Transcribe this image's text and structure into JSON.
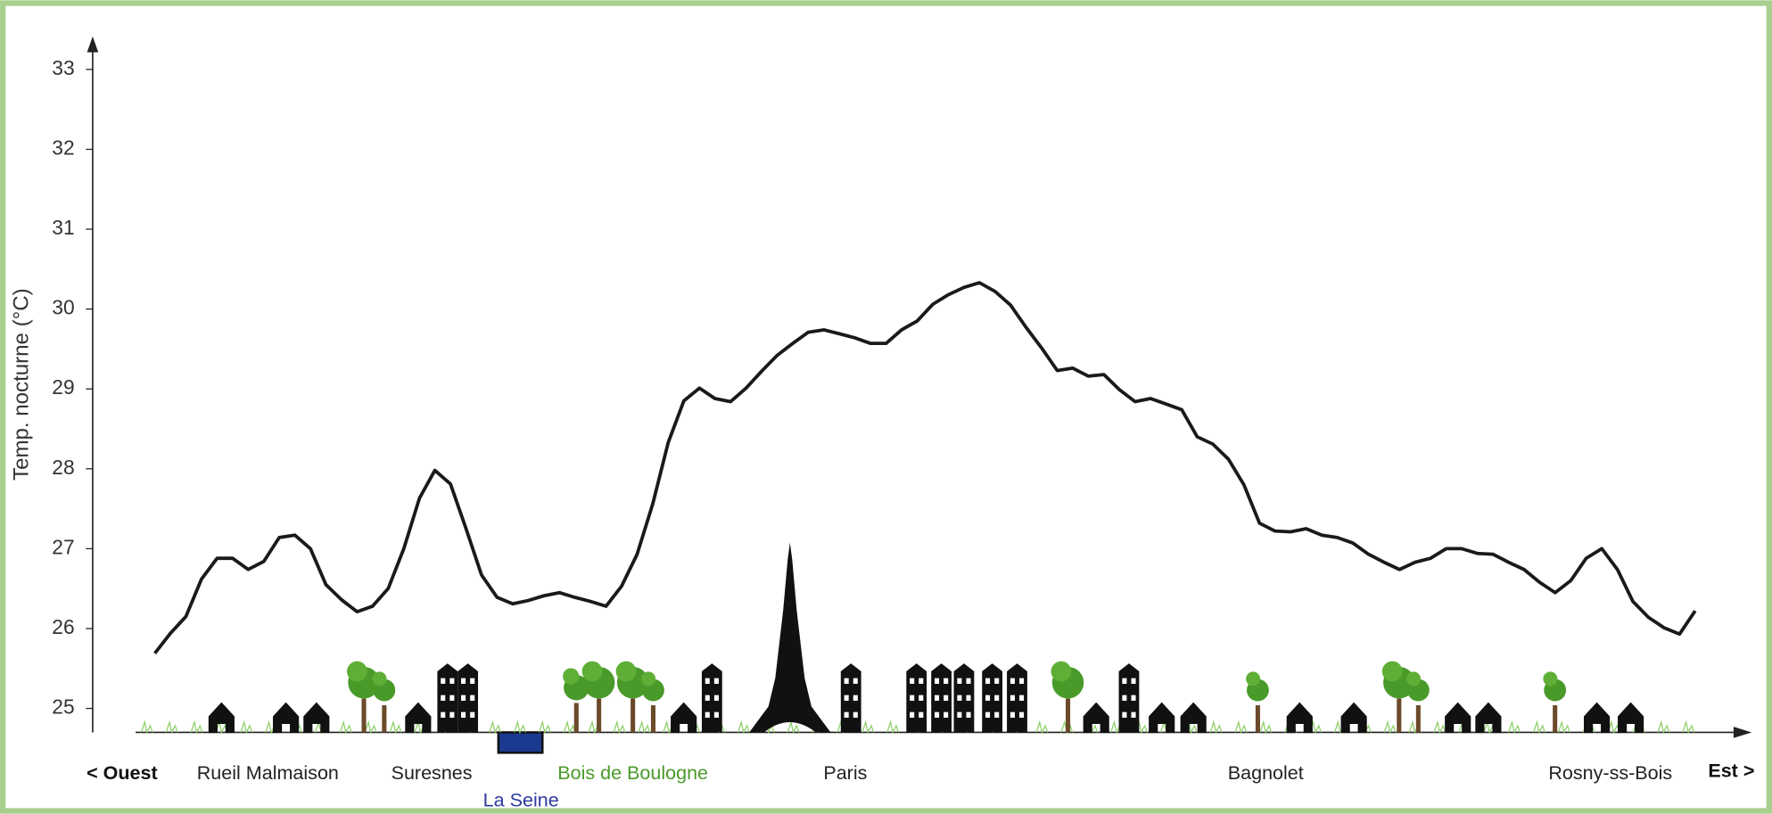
{
  "chart_data": {
    "type": "line",
    "y_label": "Temp. nocturne (°C)",
    "ylim": [
      24.7,
      33.3
    ],
    "yticks": [
      25,
      26,
      27,
      28,
      29,
      30,
      31,
      32,
      33
    ],
    "color": "#1a1a1a",
    "values": [
      25.69,
      25.94,
      26.15,
      26.62,
      26.88,
      26.88,
      26.74,
      26.84,
      27.14,
      27.17,
      27.0,
      26.55,
      26.36,
      26.21,
      26.28,
      26.5,
      27.0,
      27.63,
      27.98,
      27.81,
      27.25,
      26.67,
      26.39,
      26.31,
      26.35,
      26.41,
      26.45,
      26.39,
      26.34,
      26.28,
      26.53,
      26.93,
      27.56,
      28.33,
      28.85,
      29.01,
      28.88,
      28.84,
      29.01,
      29.22,
      29.42,
      29.57,
      29.71,
      29.74,
      29.69,
      29.64,
      29.57,
      29.57,
      29.74,
      29.85,
      30.06,
      30.18,
      30.27,
      30.33,
      30.22,
      30.05,
      29.77,
      29.51,
      29.23,
      29.26,
      29.16,
      29.18,
      28.99,
      28.84,
      28.88,
      28.81,
      28.74,
      28.4,
      28.31,
      28.12,
      27.8,
      27.32,
      27.22,
      27.21,
      27.25,
      27.17,
      27.14,
      27.07,
      26.93,
      26.83,
      26.74,
      26.83,
      26.88,
      27.0,
      27.0,
      26.94,
      26.93,
      26.83,
      26.74,
      26.58,
      26.45,
      26.6,
      26.88,
      27.0,
      26.74,
      26.34,
      26.14,
      26.01,
      25.93,
      26.22
    ],
    "places": [
      {
        "text": "< Ouest",
        "color": "#111111"
      },
      {
        "text": "Rueil Malmaison",
        "color": "#222222"
      },
      {
        "text": "Suresnes",
        "color": "#222222"
      },
      {
        "text": "La Seine",
        "color": "#2b3a9e"
      },
      {
        "text": "Bois de Boulogne",
        "color": "#4a9a2a"
      },
      {
        "text": "Paris",
        "color": "#222222"
      },
      {
        "text": "Bagnolet",
        "color": "#222222"
      },
      {
        "text": "Rosny-ss-Bois",
        "color": "#222222"
      },
      {
        "text": "Est >",
        "color": "#111111"
      }
    ]
  }
}
